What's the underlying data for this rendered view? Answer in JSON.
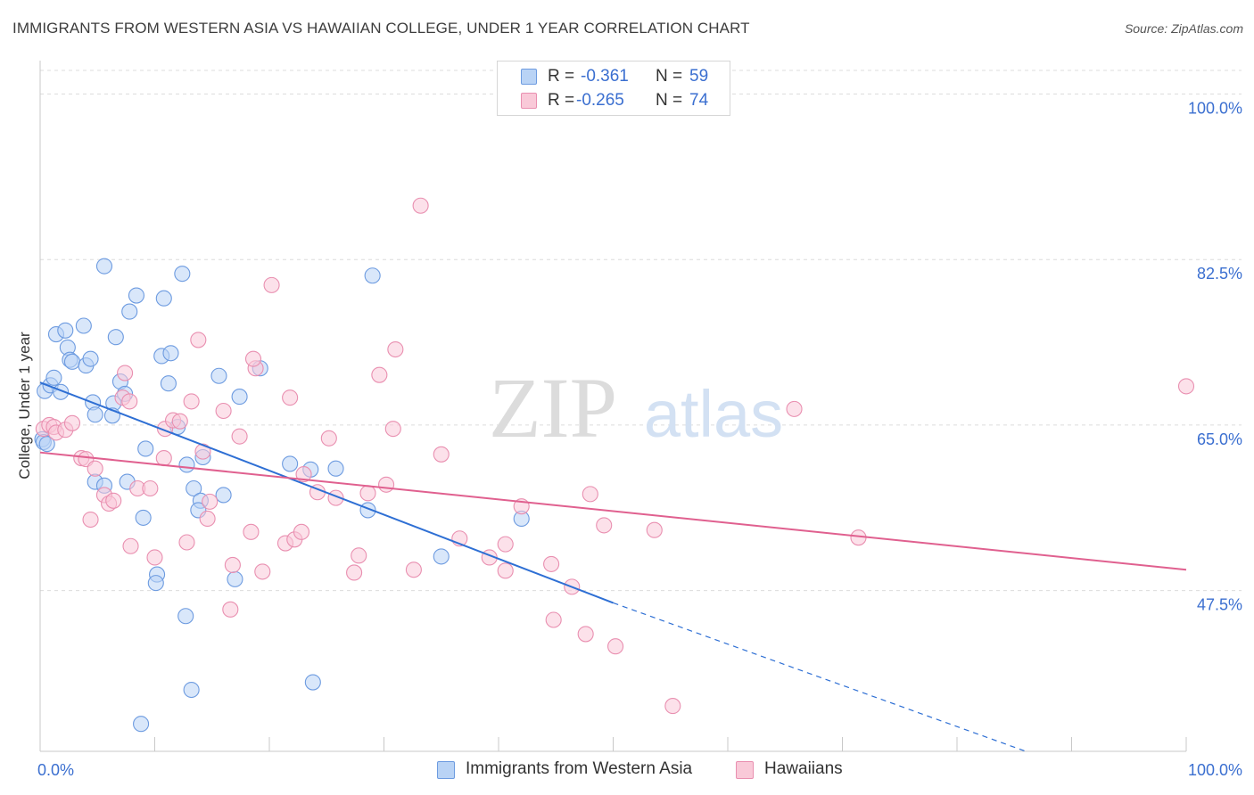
{
  "chart_data": {
    "type": "scatter",
    "title": "IMMIGRANTS FROM WESTERN ASIA VS HAWAIIAN COLLEGE, UNDER 1 YEAR CORRELATION CHART",
    "source": "Source: ZipAtlas.com",
    "xlabel": "",
    "ylabel": "College, Under 1 year",
    "xlim": [
      0,
      100
    ],
    "ylim": [
      30.5,
      102.5
    ],
    "x_tick_labels": [
      "0.0%",
      "100.0%"
    ],
    "y_ticks": [
      {
        "value": 100.0,
        "label": "100.0%"
      },
      {
        "value": 82.5,
        "label": "82.5%"
      },
      {
        "value": 65.0,
        "label": "65.0%"
      },
      {
        "value": 47.5,
        "label": "47.5%"
      }
    ],
    "watermark": {
      "zip": "ZIP",
      "atlas": "atlas"
    },
    "legend": [
      {
        "series": "Immigrants from Western Asia",
        "r_label": "R =",
        "r_value": "-0.361",
        "n_label": "N =",
        "n_value": "59"
      },
      {
        "series": "Hawaiians",
        "r_label": "R =",
        "r_value": "-0.265",
        "n_label": "N =",
        "n_value": "74"
      }
    ],
    "series": [
      {
        "name": "Immigrants from Western Asia",
        "color": "#6d9be0",
        "fill": "#b9d3f5",
        "trend": {
          "x0": 0,
          "y0": 69.5,
          "x1": 50,
          "y1": 46.2,
          "dashed_to_x": 86,
          "dashed_to_y": 30.5
        },
        "points": [
          [
            0.2,
            63.5
          ],
          [
            0.4,
            68.6
          ],
          [
            0.9,
            69.2
          ],
          [
            1.2,
            70.0
          ],
          [
            1.8,
            68.5
          ],
          [
            1.4,
            74.6
          ],
          [
            2.2,
            75.0
          ],
          [
            3.8,
            75.5
          ],
          [
            2.4,
            73.2
          ],
          [
            2.6,
            71.9
          ],
          [
            2.8,
            71.7
          ],
          [
            4.0,
            71.3
          ],
          [
            4.4,
            72.0
          ],
          [
            6.6,
            74.3
          ],
          [
            5.6,
            81.8
          ],
          [
            7.8,
            77.0
          ],
          [
            8.4,
            78.7
          ],
          [
            10.8,
            78.4
          ],
          [
            12.4,
            81.0
          ],
          [
            10.6,
            72.3
          ],
          [
            11.4,
            72.6
          ],
          [
            11.2,
            69.4
          ],
          [
            7.0,
            69.6
          ],
          [
            7.4,
            68.3
          ],
          [
            4.6,
            67.4
          ],
          [
            6.4,
            67.3
          ],
          [
            4.8,
            66.1
          ],
          [
            6.3,
            66.0
          ],
          [
            12.0,
            64.8
          ],
          [
            9.2,
            62.5
          ],
          [
            12.8,
            60.8
          ],
          [
            14.2,
            61.6
          ],
          [
            15.6,
            70.2
          ],
          [
            17.4,
            68.0
          ],
          [
            19.2,
            71.0
          ],
          [
            13.4,
            58.3
          ],
          [
            14.0,
            57.0
          ],
          [
            16.0,
            57.6
          ],
          [
            13.8,
            56.0
          ],
          [
            4.8,
            59.0
          ],
          [
            5.6,
            58.6
          ],
          [
            7.6,
            59.0
          ],
          [
            9.0,
            55.2
          ],
          [
            10.2,
            49.2
          ],
          [
            10.1,
            48.3
          ],
          [
            17.0,
            48.7
          ],
          [
            12.7,
            44.8
          ],
          [
            13.2,
            37.0
          ],
          [
            8.8,
            33.4
          ],
          [
            23.8,
            37.8
          ],
          [
            29.0,
            80.8
          ],
          [
            21.8,
            60.9
          ],
          [
            23.6,
            60.3
          ],
          [
            25.8,
            60.4
          ],
          [
            28.6,
            56.0
          ],
          [
            35.0,
            51.1
          ],
          [
            42.0,
            55.1
          ],
          [
            0.3,
            63.2
          ],
          [
            0.6,
            63.0
          ]
        ]
      },
      {
        "name": "Hawaiians",
        "color": "#e98fb0",
        "fill": "#f9c9d8",
        "trend": {
          "x0": 0,
          "y0": 62.1,
          "x1": 100,
          "y1": 49.7
        },
        "points": [
          [
            0.3,
            64.6
          ],
          [
            0.8,
            65.0
          ],
          [
            1.2,
            64.8
          ],
          [
            1.4,
            64.2
          ],
          [
            2.2,
            64.5
          ],
          [
            2.8,
            65.2
          ],
          [
            3.6,
            61.5
          ],
          [
            4.0,
            61.4
          ],
          [
            4.4,
            55.0
          ],
          [
            4.8,
            60.4
          ],
          [
            5.6,
            57.6
          ],
          [
            6.0,
            56.7
          ],
          [
            6.4,
            57.0
          ],
          [
            7.2,
            67.9
          ],
          [
            7.4,
            70.5
          ],
          [
            7.8,
            67.5
          ],
          [
            7.9,
            52.2
          ],
          [
            8.5,
            58.3
          ],
          [
            9.6,
            58.3
          ],
          [
            10.0,
            51.0
          ],
          [
            10.8,
            61.5
          ],
          [
            10.9,
            64.6
          ],
          [
            11.6,
            65.5
          ],
          [
            12.2,
            65.4
          ],
          [
            12.8,
            52.6
          ],
          [
            13.2,
            67.5
          ],
          [
            13.8,
            74.0
          ],
          [
            14.2,
            62.2
          ],
          [
            14.6,
            55.1
          ],
          [
            14.8,
            56.9
          ],
          [
            16.0,
            66.5
          ],
          [
            16.6,
            45.5
          ],
          [
            16.8,
            50.2
          ],
          [
            17.4,
            63.8
          ],
          [
            18.4,
            53.7
          ],
          [
            18.8,
            71.0
          ],
          [
            19.4,
            49.5
          ],
          [
            20.2,
            79.8
          ],
          [
            21.4,
            52.5
          ],
          [
            21.8,
            67.9
          ],
          [
            22.2,
            52.9
          ],
          [
            22.8,
            53.7
          ],
          [
            23.0,
            59.8
          ],
          [
            24.2,
            57.9
          ],
          [
            25.2,
            63.6
          ],
          [
            25.8,
            57.3
          ],
          [
            27.4,
            49.4
          ],
          [
            27.8,
            51.2
          ],
          [
            28.6,
            57.8
          ],
          [
            29.6,
            70.3
          ],
          [
            30.2,
            58.7
          ],
          [
            30.8,
            64.6
          ],
          [
            31.0,
            73.0
          ],
          [
            32.6,
            49.7
          ],
          [
            33.2,
            88.2
          ],
          [
            35.0,
            61.9
          ],
          [
            36.6,
            53.0
          ],
          [
            39.2,
            51.0
          ],
          [
            40.6,
            52.4
          ],
          [
            40.6,
            49.6
          ],
          [
            42.0,
            56.4
          ],
          [
            44.6,
            50.3
          ],
          [
            46.4,
            47.9
          ],
          [
            44.8,
            44.4
          ],
          [
            47.6,
            42.9
          ],
          [
            48.0,
            57.7
          ],
          [
            49.2,
            54.4
          ],
          [
            50.2,
            41.6
          ],
          [
            53.6,
            53.9
          ],
          [
            55.2,
            35.3
          ],
          [
            65.8,
            66.7
          ],
          [
            71.4,
            53.1
          ],
          [
            100.0,
            69.1
          ],
          [
            18.6,
            72.0
          ]
        ]
      }
    ]
  }
}
